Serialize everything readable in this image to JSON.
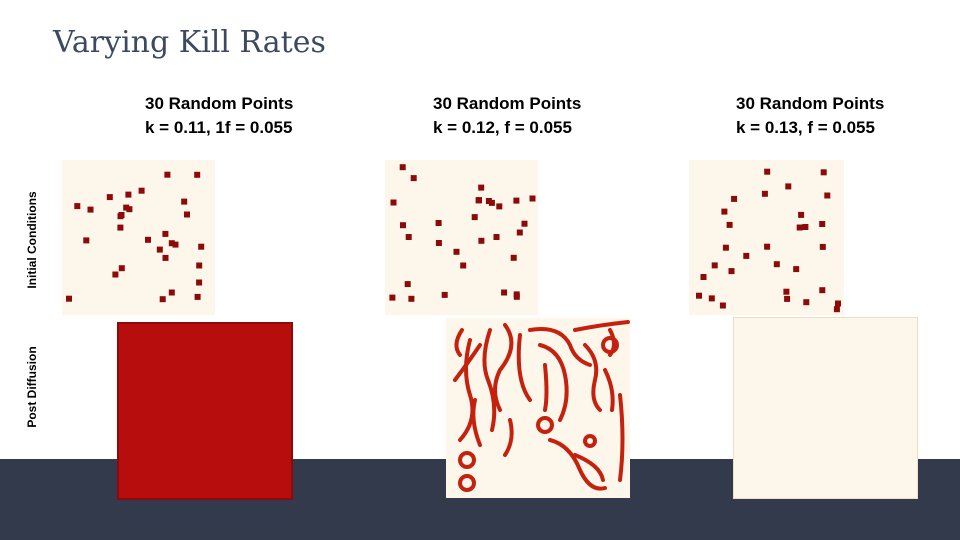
{
  "title": "Varying Kill Rates",
  "columns": [
    {
      "line1": "30 Random Points",
      "line2": "k = 0.11, 1f = 0.055"
    },
    {
      "line1": "30 Random Points",
      "line2": "k = 0.12, f = 0.055"
    },
    {
      "line1": "30 Random Points",
      "line2": "k = 0.13, f = 0.055"
    }
  ],
  "row_labels": [
    "Initial Conditions",
    "Post Diffusion"
  ]
}
